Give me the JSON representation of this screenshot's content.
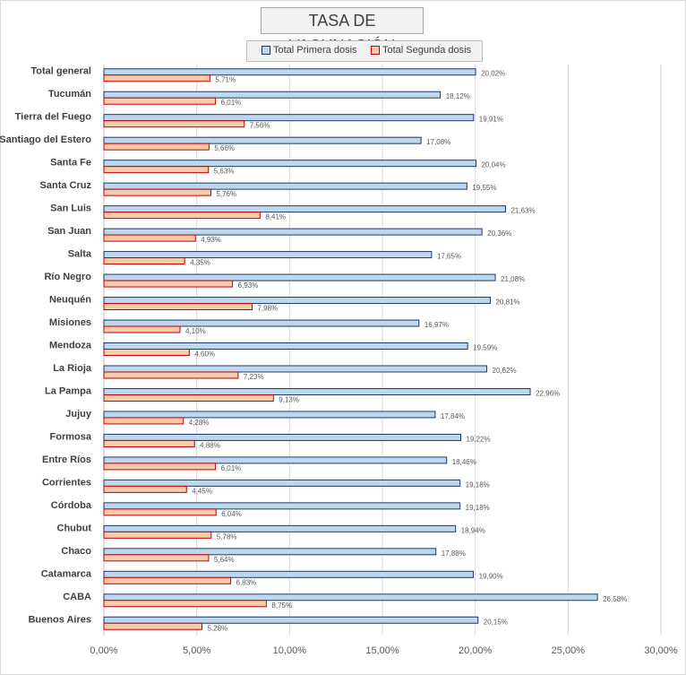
{
  "chart_data": {
    "type": "bar",
    "orientation": "horizontal",
    "title": "TASA DE VACUNACIÓN",
    "categories": [
      "Total general",
      "Tucumán",
      "Tierra del Fuego",
      "Santiago del Estero",
      "Santa Fe",
      "Santa Cruz",
      "San Luis",
      "San Juan",
      "Salta",
      "Río Negro",
      "Neuquén",
      "Misiones",
      "Mendoza",
      "La Rioja",
      "La Pampa",
      "Jujuy",
      "Formosa",
      "Entre Ríos",
      "Corrientes",
      "Córdoba",
      "Chubut",
      "Chaco",
      "Catamarca",
      "CABA",
      "Buenos Aires"
    ],
    "series": [
      {
        "name": "Total Primera dosis",
        "color": "#bdd7ee",
        "stroke": "#203864",
        "values": [
          20.02,
          18.12,
          19.91,
          17.08,
          20.04,
          19.55,
          21.63,
          20.36,
          17.65,
          21.08,
          20.81,
          16.97,
          19.59,
          20.62,
          22.96,
          17.84,
          19.22,
          18.46,
          19.18,
          19.18,
          18.94,
          17.88,
          19.9,
          26.58,
          20.15
        ],
        "labels": [
          "20,02%",
          "18,12%",
          "19,91%",
          "17,08%",
          "20,04%",
          "19,55%",
          "21,63%",
          "20,36%",
          "17,65%",
          "21,08%",
          "20,81%",
          "16,97%",
          "19,59%",
          "20,62%",
          "22,96%",
          "17,84%",
          "19,22%",
          "18,46%",
          "19,18%",
          "19,18%",
          "18,94%",
          "17,88%",
          "19,90%",
          "26,58%",
          "20,15%"
        ]
      },
      {
        "name": "Total Segunda dosis",
        "color": "#f8cbad",
        "stroke": "#c00000",
        "values": [
          5.71,
          6.01,
          7.56,
          5.66,
          5.63,
          5.76,
          8.41,
          4.93,
          4.35,
          6.93,
          7.98,
          4.1,
          4.6,
          7.23,
          9.13,
          4.28,
          4.88,
          6.01,
          4.45,
          6.04,
          5.78,
          5.64,
          6.83,
          8.75,
          5.28
        ],
        "labels": [
          "5,71%",
          "6,01%",
          "7,56%",
          "5,66%",
          "5,63%",
          "5,76%",
          "8,41%",
          "4,93%",
          "4,35%",
          "6,93%",
          "7,98%",
          "4,10%",
          "4,60%",
          "7,23%",
          "9,13%",
          "4,28%",
          "4,88%",
          "6,01%",
          "4,45%",
          "6,04%",
          "5,78%",
          "5,64%",
          "6,83%",
          "8,75%",
          "5,28%"
        ]
      }
    ],
    "xlim": [
      0,
      30
    ],
    "xticks": [
      0,
      5,
      10,
      15,
      20,
      25,
      30
    ],
    "xtick_labels": [
      "0,00%",
      "5,00%",
      "10,00%",
      "15,00%",
      "20,00%",
      "25,00%",
      "30,00%"
    ],
    "grid": true,
    "legend_position": "top"
  }
}
